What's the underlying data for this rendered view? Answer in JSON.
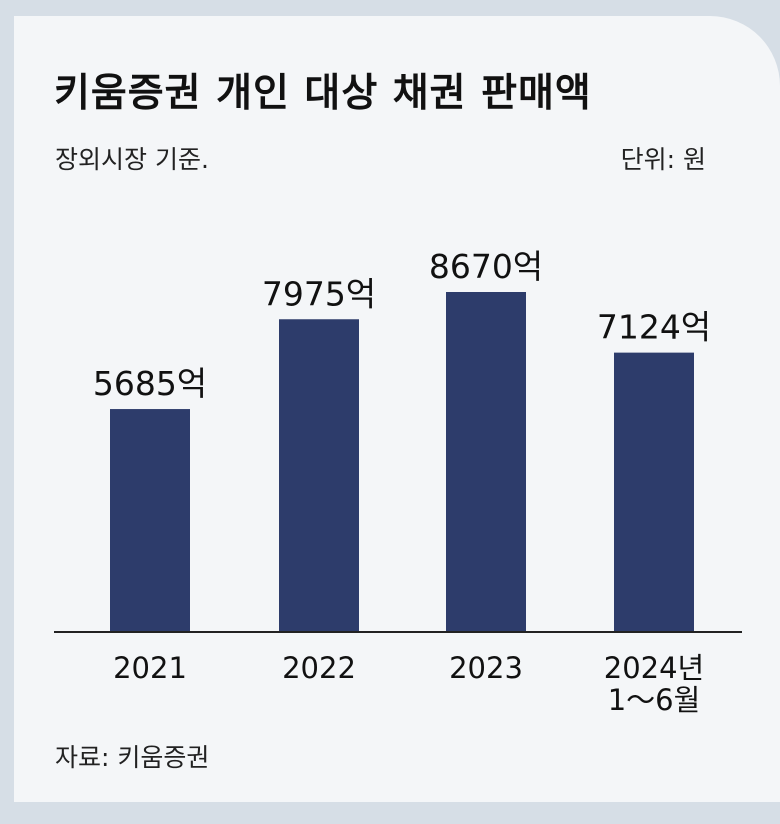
{
  "title": "키움증권 개인 대상 채권 판매액",
  "subtitle": "장외시장 기준.",
  "unit": "단위: 원",
  "source": "자료: 키움증권",
  "colors": {
    "bar": "#2d3c6b",
    "axis": "#222222",
    "background": "#f4f6f8",
    "frame": "#d6dee6"
  },
  "chart_data": {
    "type": "bar",
    "categories": [
      [
        "2021"
      ],
      [
        "2022"
      ],
      [
        "2023"
      ],
      [
        "2024년",
        "1～6월"
      ]
    ],
    "values": [
      5685,
      7975,
      8670,
      7124
    ],
    "value_labels": [
      "5685억",
      "7975억",
      "8670억",
      "7124억"
    ],
    "value_unit": "억 원",
    "ylim": [
      0,
      9000
    ],
    "grid": false,
    "legend": "none"
  }
}
